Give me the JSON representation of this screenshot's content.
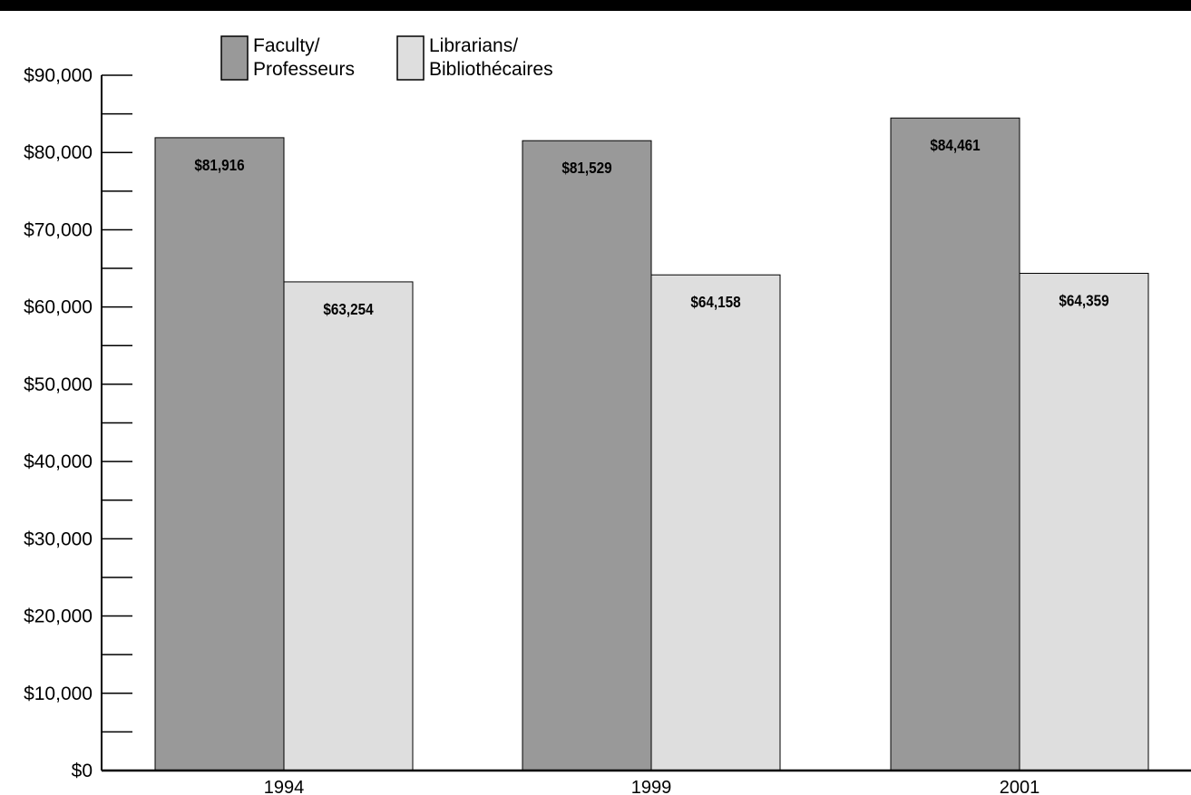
{
  "chart_data": {
    "type": "bar",
    "title": "",
    "xlabel": "",
    "ylabel": "",
    "categories": [
      "1994",
      "1999",
      "2001"
    ],
    "series": [
      {
        "name": "Faculty/\nProfesseurs",
        "values": [
          81916,
          81529,
          84461
        ],
        "color": "#999999"
      },
      {
        "name": "Librarians/\nBibliothécaires",
        "values": [
          63254,
          64158,
          64359
        ],
        "color": "#dedede"
      }
    ],
    "data_labels": [
      [
        "$81,916",
        "$81,529",
        "$84,461"
      ],
      [
        "$63,254",
        "$64,158",
        "$64,359"
      ]
    ],
    "ylim": [
      0,
      90000
    ],
    "yticks": [
      0,
      10000,
      20000,
      30000,
      40000,
      50000,
      60000,
      70000,
      80000,
      90000
    ],
    "ytick_labels": [
      "$0",
      "$10,000",
      "$20,000",
      "$30,000",
      "$40,000",
      "$50,000",
      "$60,000",
      "$70,000",
      "$80,000",
      "$90,000"
    ],
    "minor_ticks": true,
    "grid": false,
    "legend_position": "top-left"
  },
  "page": {
    "top_bar_color": "#000000"
  }
}
